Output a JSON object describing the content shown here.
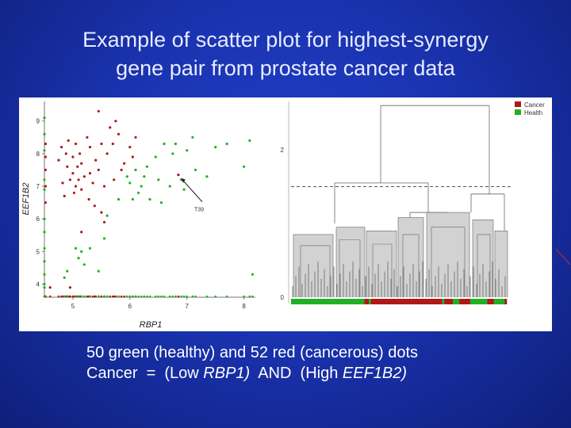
{
  "slide": {
    "title_line1": "Example of scatter plot for highest-synergy",
    "title_line2": "gene pair from prostate cancer data",
    "caption_line1": "50 green (healthy) and 52 red (cancerous) dots",
    "caption_line2_prefix": "Cancer  =  (Low ",
    "caption_gene1": "RBP1)",
    "caption_mid": "  AND  (High ",
    "caption_gene2": "EEF1B2)"
  },
  "colors": {
    "cancer": "#b01818",
    "healthy": "#22b022",
    "background_blue": "#1a33b0",
    "dendro_fill": "#d2d2d2",
    "dendro_line": "#666666"
  },
  "chart_data": [
    {
      "type": "scatter",
      "title": "",
      "xlabel": "RBP1",
      "ylabel": "EEF1B2",
      "xlim": [
        4.5,
        8.2
      ],
      "ylim": [
        3.6,
        9.6
      ],
      "xticks": [
        "5",
        "6",
        "7",
        "8"
      ],
      "yticks": [
        "4",
        "5",
        "6",
        "7",
        "8",
        "9"
      ],
      "annotation": "T39",
      "annotation_point": [
        6.85,
        7.35
      ],
      "series": [
        {
          "name": "Cancer",
          "color": "#b01818",
          "points": [
            [
              4.52,
              7.9
            ],
            [
              4.52,
              7.5
            ],
            [
              4.52,
              7.0
            ],
            [
              4.52,
              6.5
            ],
            [
              4.52,
              8.3
            ],
            [
              4.75,
              7.8
            ],
            [
              4.8,
              8.2
            ],
            [
              4.82,
              7.1
            ],
            [
              4.85,
              6.7
            ],
            [
              4.88,
              8.0
            ],
            [
              4.9,
              7.6
            ],
            [
              4.92,
              8.4
            ],
            [
              4.95,
              7.2
            ],
            [
              5.0,
              7.9
            ],
            [
              5.0,
              7.4
            ],
            [
              5.02,
              6.8
            ],
            [
              5.05,
              7.0
            ],
            [
              5.05,
              8.3
            ],
            [
              5.08,
              7.6
            ],
            [
              5.1,
              7.2
            ],
            [
              5.12,
              8.0
            ],
            [
              5.15,
              6.9
            ],
            [
              5.15,
              7.7
            ],
            [
              5.2,
              7.3
            ],
            [
              5.25,
              8.5
            ],
            [
              5.28,
              6.6
            ],
            [
              5.3,
              7.4
            ],
            [
              5.3,
              8.2
            ],
            [
              5.35,
              7.1
            ],
            [
              5.38,
              6.4
            ],
            [
              5.4,
              7.8
            ],
            [
              5.45,
              9.3
            ],
            [
              5.45,
              7.5
            ],
            [
              5.5,
              8.3
            ],
            [
              5.5,
              6.2
            ],
            [
              5.55,
              7.0
            ],
            [
              5.6,
              8.0
            ],
            [
              5.65,
              8.8
            ],
            [
              5.7,
              8.3
            ],
            [
              5.72,
              7.2
            ],
            [
              5.75,
              9.0
            ],
            [
              5.8,
              8.6
            ],
            [
              5.85,
              7.5
            ],
            [
              6.0,
              8.2
            ],
            [
              6.05,
              7.9
            ],
            [
              6.1,
              8.5
            ],
            [
              5.55,
              5.9
            ],
            [
              4.95,
              3.9
            ],
            [
              4.6,
              3.9
            ],
            [
              5.15,
              5.6
            ],
            [
              6.85,
              7.35
            ],
            [
              5.9,
              7.7
            ]
          ]
        },
        {
          "name": "Health",
          "color": "#22b022",
          "points": [
            [
              4.5,
              7.2
            ],
            [
              4.5,
              6.9
            ],
            [
              4.5,
              6.0
            ],
            [
              4.5,
              5.6
            ],
            [
              4.5,
              5.1
            ],
            [
              4.5,
              4.7
            ],
            [
              4.5,
              4.3
            ],
            [
              4.5,
              4.0
            ],
            [
              4.5,
              3.9
            ],
            [
              4.5,
              8.6
            ],
            [
              4.5,
              9.1
            ],
            [
              4.5,
              8.1
            ],
            [
              5.05,
              5.1
            ],
            [
              5.1,
              4.8
            ],
            [
              5.2,
              4.6
            ],
            [
              5.15,
              5.0
            ],
            [
              5.3,
              5.1
            ],
            [
              4.85,
              4.2
            ],
            [
              4.9,
              4.4
            ],
            [
              5.45,
              4.4
            ],
            [
              5.55,
              5.4
            ],
            [
              5.6,
              6.1
            ],
            [
              5.8,
              6.6
            ],
            [
              6.0,
              7.1
            ],
            [
              6.1,
              7.5
            ],
            [
              6.15,
              6.8
            ],
            [
              6.2,
              7.0
            ],
            [
              6.25,
              7.3
            ],
            [
              6.3,
              7.6
            ],
            [
              6.35,
              6.6
            ],
            [
              6.45,
              7.9
            ],
            [
              6.5,
              7.2
            ],
            [
              6.55,
              6.5
            ],
            [
              6.6,
              8.3
            ],
            [
              6.7,
              7.0
            ],
            [
              6.75,
              8.0
            ],
            [
              6.8,
              8.3
            ],
            [
              6.9,
              7.2
            ],
            [
              6.95,
              6.9
            ],
            [
              7.0,
              8.1
            ],
            [
              7.1,
              8.5
            ],
            [
              7.15,
              7.5
            ],
            [
              7.35,
              7.3
            ],
            [
              7.5,
              8.2
            ],
            [
              7.7,
              8.3
            ],
            [
              8.0,
              7.6
            ],
            [
              8.1,
              8.4
            ],
            [
              8.15,
              4.3
            ],
            [
              6.05,
              6.6
            ],
            [
              5.95,
              7.3
            ]
          ]
        }
      ]
    },
    {
      "type": "dendrogram",
      "title": "",
      "yticks": [
        "0",
        "2"
      ],
      "legend": [
        "Cancer",
        "Health"
      ],
      "legend_position": "top-right",
      "cut_line": "dashed",
      "color_bar": [
        {
          "label": "Health",
          "fraction": 0.34
        },
        {
          "label": "Cancer",
          "fraction": 0.02
        },
        {
          "label": "Health",
          "fraction": 0.01
        },
        {
          "label": "Cancer",
          "fraction": 0.33
        },
        {
          "label": "Health",
          "fraction": 0.01
        },
        {
          "label": "Cancer",
          "fraction": 0.04
        },
        {
          "label": "Health",
          "fraction": 0.03
        },
        {
          "label": "Cancer",
          "fraction": 0.05
        },
        {
          "label": "Health",
          "fraction": 0.08
        },
        {
          "label": "Cancer",
          "fraction": 0.03
        },
        {
          "label": "Health",
          "fraction": 0.05
        },
        {
          "label": "Cancer",
          "fraction": 0.01
        }
      ]
    }
  ]
}
